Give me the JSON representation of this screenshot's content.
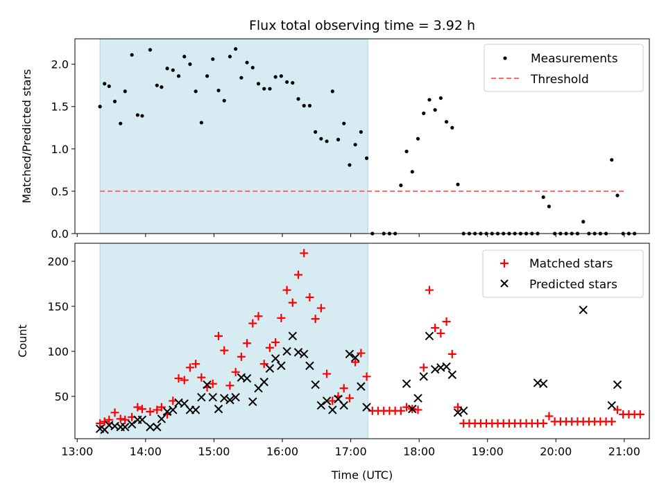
{
  "title": "Flux total observing time = 3.92 h",
  "xlabel": "Time (UTC)",
  "colors": {
    "shade": "#add8e6",
    "measurements": "#000000",
    "threshold": "#ff6666",
    "matched": "#ff0000",
    "predicted": "#000000"
  },
  "chart_data": [
    {
      "type": "scatter",
      "ylabel": "Matched/Predicted stars",
      "xlim": [
        "12:58",
        "21:22"
      ],
      "ylim": [
        0,
        2.3
      ],
      "yticks": [
        "0.0",
        "0.5",
        "1.0",
        "1.5",
        "2.0"
      ],
      "ytick_values": [
        0,
        0.5,
        1.0,
        1.5,
        2.0
      ],
      "shaded_interval": [
        "13:20",
        "17:15"
      ],
      "legend": {
        "position": "top-right",
        "entries": [
          "Measurements",
          "Threshold"
        ]
      },
      "threshold": {
        "name": "Threshold",
        "y": 0.5,
        "x": [
          "13:20",
          "21:00"
        ]
      },
      "series": [
        {
          "name": "Measurements",
          "marker": "dot",
          "points": [
            [
              "13:20",
              1.5
            ],
            [
              "13:24",
              1.77
            ],
            [
              "13:28",
              1.74
            ],
            [
              "13:33",
              1.56
            ],
            [
              "13:38",
              1.3
            ],
            [
              "13:42",
              1.68
            ],
            [
              "13:48",
              2.11
            ],
            [
              "13:53",
              1.4
            ],
            [
              "13:57",
              1.39
            ],
            [
              "14:04",
              2.17
            ],
            [
              "14:10",
              1.75
            ],
            [
              "14:14",
              1.73
            ],
            [
              "14:19",
              1.95
            ],
            [
              "14:24",
              1.93
            ],
            [
              "14:29",
              1.86
            ],
            [
              "14:34",
              2.09
            ],
            [
              "14:39",
              2.0
            ],
            [
              "14:44",
              1.68
            ],
            [
              "14:49",
              1.31
            ],
            [
              "14:54",
              1.86
            ],
            [
              "14:59",
              2.06
            ],
            [
              "15:04",
              1.69
            ],
            [
              "15:09",
              1.57
            ],
            [
              "15:14",
              2.09
            ],
            [
              "15:19",
              2.18
            ],
            [
              "15:24",
              1.84
            ],
            [
              "15:29",
              2.02
            ],
            [
              "15:34",
              1.96
            ],
            [
              "15:39",
              1.77
            ],
            [
              "15:44",
              1.71
            ],
            [
              "15:49",
              1.71
            ],
            [
              "15:54",
              1.85
            ],
            [
              "15:59",
              1.86
            ],
            [
              "16:04",
              1.79
            ],
            [
              "16:09",
              1.78
            ],
            [
              "16:14",
              1.59
            ],
            [
              "16:19",
              1.51
            ],
            [
              "16:24",
              1.51
            ],
            [
              "16:29",
              1.2
            ],
            [
              "16:34",
              1.12
            ],
            [
              "16:39",
              1.09
            ],
            [
              "16:44",
              1.68
            ],
            [
              "16:49",
              1.11
            ],
            [
              "16:54",
              1.3
            ],
            [
              "16:59",
              0.81
            ],
            [
              "17:04",
              1.05
            ],
            [
              "17:09",
              1.2
            ],
            [
              "17:14",
              0.89
            ],
            [
              "17:19",
              0.0
            ],
            [
              "17:29",
              0.0
            ],
            [
              "17:34",
              0.0
            ],
            [
              "17:39",
              0.0
            ],
            [
              "17:44",
              0.57
            ],
            [
              "17:49",
              0.97
            ],
            [
              "17:54",
              0.73
            ],
            [
              "17:59",
              1.12
            ],
            [
              "18:04",
              1.42
            ],
            [
              "18:09",
              1.58
            ],
            [
              "18:14",
              1.46
            ],
            [
              "18:19",
              1.6
            ],
            [
              "18:24",
              1.32
            ],
            [
              "18:29",
              1.25
            ],
            [
              "18:34",
              0.58
            ],
            [
              "18:39",
              0.0
            ],
            [
              "18:44",
              0.0
            ],
            [
              "18:49",
              0.0
            ],
            [
              "18:54",
              0.0
            ],
            [
              "18:59",
              0.0
            ],
            [
              "19:04",
              0.0
            ],
            [
              "19:09",
              0.0
            ],
            [
              "19:14",
              0.0
            ],
            [
              "19:19",
              0.0
            ],
            [
              "19:24",
              0.0
            ],
            [
              "19:29",
              0.0
            ],
            [
              "19:34",
              0.0
            ],
            [
              "19:39",
              0.0
            ],
            [
              "19:44",
              0.0
            ],
            [
              "19:49",
              0.43
            ],
            [
              "19:54",
              0.32
            ],
            [
              "19:59",
              0.0
            ],
            [
              "20:04",
              0.0
            ],
            [
              "20:09",
              0.0
            ],
            [
              "20:14",
              0.0
            ],
            [
              "20:19",
              0.0
            ],
            [
              "20:24",
              0.14
            ],
            [
              "20:29",
              0.0
            ],
            [
              "20:34",
              0.0
            ],
            [
              "20:39",
              0.0
            ],
            [
              "20:44",
              0.0
            ],
            [
              "20:49",
              0.87
            ],
            [
              "20:54",
              0.45
            ],
            [
              "20:59",
              0.0
            ],
            [
              "21:04",
              0.0
            ],
            [
              "21:09",
              0.0
            ]
          ]
        }
      ]
    },
    {
      "type": "scatter",
      "ylabel": "Count",
      "xlim": [
        "12:58",
        "21:22"
      ],
      "ylim": [
        3,
        220
      ],
      "yticks": [
        "50",
        "100",
        "150",
        "200"
      ],
      "ytick_values": [
        50,
        100,
        150,
        200
      ],
      "xticks": [
        "13:00",
        "14:00",
        "15:00",
        "16:00",
        "17:00",
        "18:00",
        "19:00",
        "20:00",
        "21:00"
      ],
      "shaded_interval": [
        "13:20",
        "17:15"
      ],
      "legend": {
        "position": "top-right",
        "entries": [
          "Matched stars",
          "Predicted stars"
        ]
      },
      "series": [
        {
          "name": "Matched stars",
          "marker": "plus",
          "points": [
            [
              "13:20",
              20
            ],
            [
              "13:24",
              22
            ],
            [
              "13:28",
              24
            ],
            [
              "13:33",
              32
            ],
            [
              "13:38",
              25
            ],
            [
              "13:42",
              24
            ],
            [
              "13:48",
              27
            ],
            [
              "13:53",
              38
            ],
            [
              "13:57",
              36
            ],
            [
              "14:04",
              33
            ],
            [
              "14:10",
              35
            ],
            [
              "14:14",
              38
            ],
            [
              "14:19",
              30
            ],
            [
              "14:24",
              45
            ],
            [
              "14:29",
              70
            ],
            [
              "14:34",
              68
            ],
            [
              "14:39",
              82
            ],
            [
              "14:44",
              86
            ],
            [
              "14:49",
              71
            ],
            [
              "14:54",
              60
            ],
            [
              "14:59",
              64
            ],
            [
              "15:04",
              117
            ],
            [
              "15:09",
              101
            ],
            [
              "15:14",
              62
            ],
            [
              "15:19",
              77
            ],
            [
              "15:24",
              94
            ],
            [
              "15:29",
              109
            ],
            [
              "15:34",
              131
            ],
            [
              "15:39",
              139
            ],
            [
              "15:44",
              86
            ],
            [
              "15:49",
              104
            ],
            [
              "15:54",
              110
            ],
            [
              "15:59",
              137
            ],
            [
              "16:04",
              168
            ],
            [
              "16:09",
              154
            ],
            [
              "16:14",
              185
            ],
            [
              "16:19",
              209
            ],
            [
              "16:24",
              160
            ],
            [
              "16:29",
              136
            ],
            [
              "16:34",
              148
            ],
            [
              "16:39",
              75
            ],
            [
              "16:44",
              45
            ],
            [
              "16:49",
              50
            ],
            [
              "16:54",
              59
            ],
            [
              "16:59",
              48
            ],
            [
              "17:04",
              88
            ],
            [
              "17:09",
              98
            ],
            [
              "17:14",
              72
            ],
            [
              "17:19",
              34
            ],
            [
              "17:24",
              34
            ],
            [
              "17:29",
              34
            ],
            [
              "17:34",
              34
            ],
            [
              "17:39",
              34
            ],
            [
              "17:44",
              34
            ],
            [
              "17:49",
              38
            ],
            [
              "17:54",
              36
            ],
            [
              "17:59",
              35
            ],
            [
              "18:04",
              82
            ],
            [
              "18:09",
              168
            ],
            [
              "18:14",
              126
            ],
            [
              "18:19",
              120
            ],
            [
              "18:24",
              133
            ],
            [
              "18:29",
              97
            ],
            [
              "18:34",
              38
            ],
            [
              "18:39",
              20
            ],
            [
              "18:44",
              20
            ],
            [
              "18:49",
              20
            ],
            [
              "18:54",
              20
            ],
            [
              "18:59",
              20
            ],
            [
              "19:04",
              20
            ],
            [
              "19:09",
              20
            ],
            [
              "19:14",
              20
            ],
            [
              "19:19",
              20
            ],
            [
              "19:24",
              20
            ],
            [
              "19:29",
              20
            ],
            [
              "19:34",
              20
            ],
            [
              "19:39",
              20
            ],
            [
              "19:44",
              20
            ],
            [
              "19:49",
              20
            ],
            [
              "19:54",
              28
            ],
            [
              "19:59",
              22
            ],
            [
              "20:04",
              22
            ],
            [
              "20:09",
              22
            ],
            [
              "20:14",
              22
            ],
            [
              "20:19",
              22
            ],
            [
              "20:24",
              22
            ],
            [
              "20:29",
              22
            ],
            [
              "20:34",
              22
            ],
            [
              "20:39",
              22
            ],
            [
              "20:44",
              22
            ],
            [
              "20:49",
              22
            ],
            [
              "20:54",
              35
            ],
            [
              "20:59",
              30
            ],
            [
              "21:04",
              30
            ],
            [
              "21:09",
              30
            ],
            [
              "21:14",
              30
            ]
          ]
        },
        {
          "name": "Predicted stars",
          "marker": "x",
          "points": [
            [
              "13:20",
              14
            ],
            [
              "13:24",
              13
            ],
            [
              "13:28",
              18
            ],
            [
              "13:33",
              17
            ],
            [
              "13:38",
              16
            ],
            [
              "13:42",
              16
            ],
            [
              "13:48",
              19
            ],
            [
              "13:53",
              24
            ],
            [
              "13:57",
              24
            ],
            [
              "14:04",
              16
            ],
            [
              "14:10",
              16
            ],
            [
              "14:14",
              25
            ],
            [
              "14:19",
              33
            ],
            [
              "14:24",
              35
            ],
            [
              "14:29",
              43
            ],
            [
              "14:34",
              42
            ],
            [
              "14:39",
              35
            ],
            [
              "14:44",
              35
            ],
            [
              "14:49",
              49
            ],
            [
              "14:54",
              63
            ],
            [
              "14:59",
              49
            ],
            [
              "15:04",
              36
            ],
            [
              "15:09",
              48
            ],
            [
              "15:14",
              46
            ],
            [
              "15:19",
              49
            ],
            [
              "15:24",
              71
            ],
            [
              "15:29",
              70
            ],
            [
              "15:34",
              44
            ],
            [
              "15:39",
              59
            ],
            [
              "15:44",
              66
            ],
            [
              "15:49",
              81
            ],
            [
              "15:54",
              92
            ],
            [
              "15:59",
              84
            ],
            [
              "16:04",
              100
            ],
            [
              "16:09",
              117
            ],
            [
              "16:14",
              99
            ],
            [
              "16:19",
              97
            ],
            [
              "16:24",
              84
            ],
            [
              "16:29",
              63
            ],
            [
              "16:34",
              40
            ],
            [
              "16:39",
              45
            ],
            [
              "16:44",
              35
            ],
            [
              "16:49",
              47
            ],
            [
              "16:54",
              40
            ],
            [
              "16:59",
              97
            ],
            [
              "17:04",
              93
            ],
            [
              "17:09",
              61
            ],
            [
              "17:14",
              38
            ],
            [
              "17:49",
              64
            ],
            [
              "17:54",
              36
            ],
            [
              "17:59",
              48
            ],
            [
              "18:04",
              72
            ],
            [
              "18:09",
              117
            ],
            [
              "18:14",
              80
            ],
            [
              "18:19",
              82
            ],
            [
              "18:24",
              83
            ],
            [
              "18:29",
              74
            ],
            [
              "18:34",
              32
            ],
            [
              "18:39",
              34
            ],
            [
              "19:44",
              65
            ],
            [
              "19:49",
              64
            ],
            [
              "20:24",
              146
            ],
            [
              "20:49",
              40
            ],
            [
              "20:54",
              63
            ]
          ]
        }
      ]
    }
  ]
}
